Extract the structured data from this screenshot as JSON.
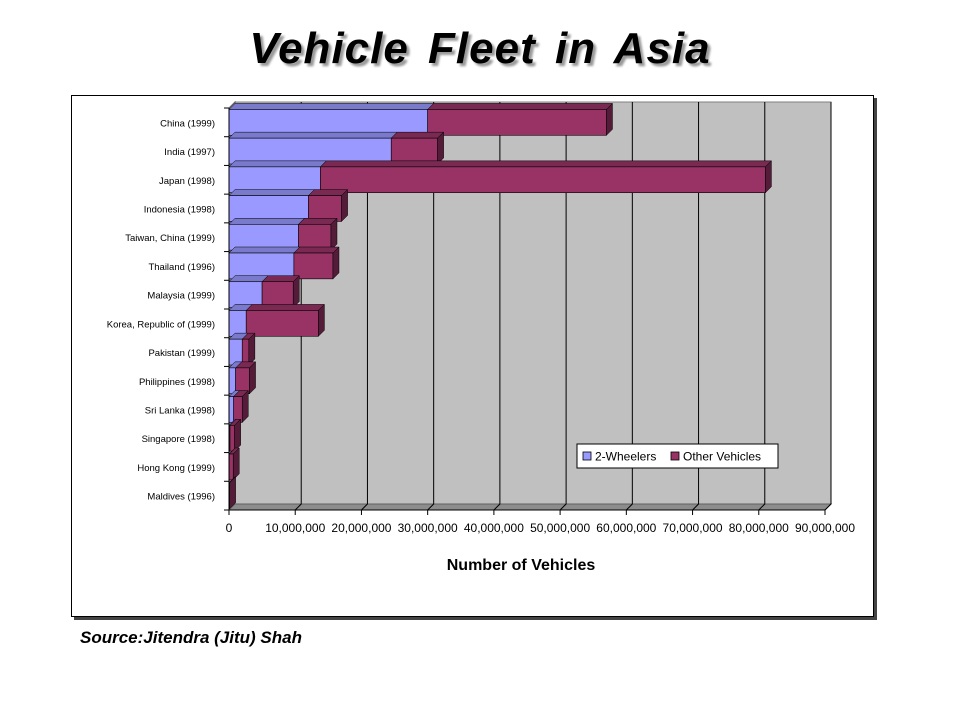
{
  "title": "Vehicle  Fleet  in  Asia",
  "source": "Source:Jitendra (Jitu) Shah",
  "colors": {
    "series_2wheelers": "#9999ff",
    "series_other": "#993366",
    "plot_bg": "#c0c0c0"
  },
  "chart_data": {
    "type": "bar",
    "orientation": "horizontal",
    "stacked": true,
    "categories": [
      "China (1999)",
      "India (1997)",
      "Japan (1998)",
      "Indonesia (1998)",
      "Taiwan, China (1999)",
      "Thailand (1996)",
      "Malaysia (1999)",
      "Korea, Republic of (1999)",
      "Pakistan (1999)",
      "Philippines (1998)",
      "Sri Lanka (1998)",
      "Singapore (1998)",
      "Hong Kong (1999)",
      "Maldives (1996)"
    ],
    "series": [
      {
        "name": "2-Wheelers",
        "values": [
          30000000,
          24500000,
          13800000,
          12000000,
          10500000,
          9800000,
          5000000,
          2600000,
          2000000,
          1000000,
          700000,
          150000,
          40000,
          15000
        ]
      },
      {
        "name": "Other Vehicles",
        "values": [
          27000000,
          7000000,
          67200000,
          5000000,
          4900000,
          5900000,
          4700000,
          10900000,
          1000000,
          2100000,
          1300000,
          700000,
          600000,
          30000
        ]
      }
    ],
    "xlabel": "Number of Vehicles",
    "xlim": [
      0,
      90000000
    ],
    "xticks": [
      0,
      10000000,
      20000000,
      30000000,
      40000000,
      50000000,
      60000000,
      70000000,
      80000000,
      90000000
    ],
    "xtick_labels": [
      "0",
      "10,000,000",
      "20,000,000",
      "30,000,000",
      "40,000,000",
      "50,000,000",
      "60,000,000",
      "70,000,000",
      "80,000,000",
      "90,000,000"
    ],
    "legend_position": "bottom-right",
    "grid": true
  }
}
